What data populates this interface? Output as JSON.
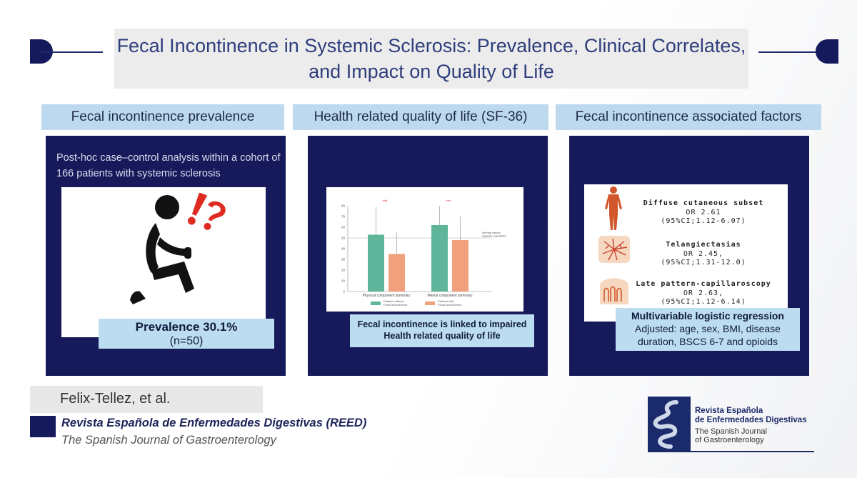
{
  "title": "Fecal Incontinence in Systemic Sclerosis: Prevalence, Clinical Correlates, and Impact on Quality of Life",
  "sections": {
    "prevalence": {
      "heading": "Fecal incontinence prevalence",
      "description": "Post-hoc case–control analysis within a cohort of 166 patients with systemic sclerosis",
      "result_title": "Prevalence 30.1%",
      "result_n": "(n=50)"
    },
    "qol": {
      "heading": "Health related quality of life (SF-36)",
      "conclusion_line1": "Fecal incontinence is linked to impaired",
      "conclusion_line2": "Health related quality of life"
    },
    "factors": {
      "heading": "Fecal incontinence associated factors",
      "items": [
        {
          "name": "Diffuse cutaneous subset",
          "or": "OR 2.61",
          "ci": "(95%CI;1.12-6.07)"
        },
        {
          "name": "Telangiectasias",
          "or": "OR 2.45,",
          "ci": "(95%CI;1.31-12.0)"
        },
        {
          "name": "Late pattern-capillaroscopy",
          "or": "OR 2.63,",
          "ci": "(95%CI;1.12-6.14)"
        }
      ],
      "model_title": "Multivariable logistic regression",
      "model_desc": "Adjusted: age, sex, BMI, disease duration, BSCS 6-7 and opioids"
    }
  },
  "chart_data": {
    "type": "bar",
    "categories": [
      "Physical component summary",
      "Mental component summary"
    ],
    "series": [
      {
        "name": "Patients without Fecal incontinence",
        "values": [
          53,
          62
        ],
        "errors": [
          26,
          18
        ],
        "color": "#5fb59a"
      },
      {
        "name": "Patients with Fecal incontinence",
        "values": [
          35,
          48
        ],
        "errors": [
          20,
          22
        ],
        "color": "#f0a07c"
      }
    ],
    "ylim": [
      0,
      80
    ],
    "yticks": [
      "0",
      "10",
      "20",
      "30",
      "40",
      "50",
      "60",
      "70",
      "80"
    ],
    "significance": [
      "***",
      "***"
    ],
    "reference_line": {
      "value": 50,
      "label_line1": "Normal values",
      "label_line2": "Spanish population"
    }
  },
  "footer": {
    "author": "Felix-Tellez, et al.",
    "journal": "Revista Española de Enfermedades Digestivas (REED)",
    "journal_en": "The Spanish Journal of Gastroenterology",
    "logo_line1": "Revista Española",
    "logo_line2": "de Enfermedades Digestivas",
    "logo_line3": "The Spanish Journal",
    "logo_line4": "of Gastroenterology"
  },
  "colors": {
    "navy": "#161a5a",
    "light_blue": "#bcdcf0",
    "title_text": "#2f3e7d"
  },
  "icons": [
    "person-toilet-icon",
    "exclamation-question-icon",
    "human-body-icon",
    "telangiectasia-icon",
    "capillary-icon",
    "journal-logo-icon"
  ]
}
